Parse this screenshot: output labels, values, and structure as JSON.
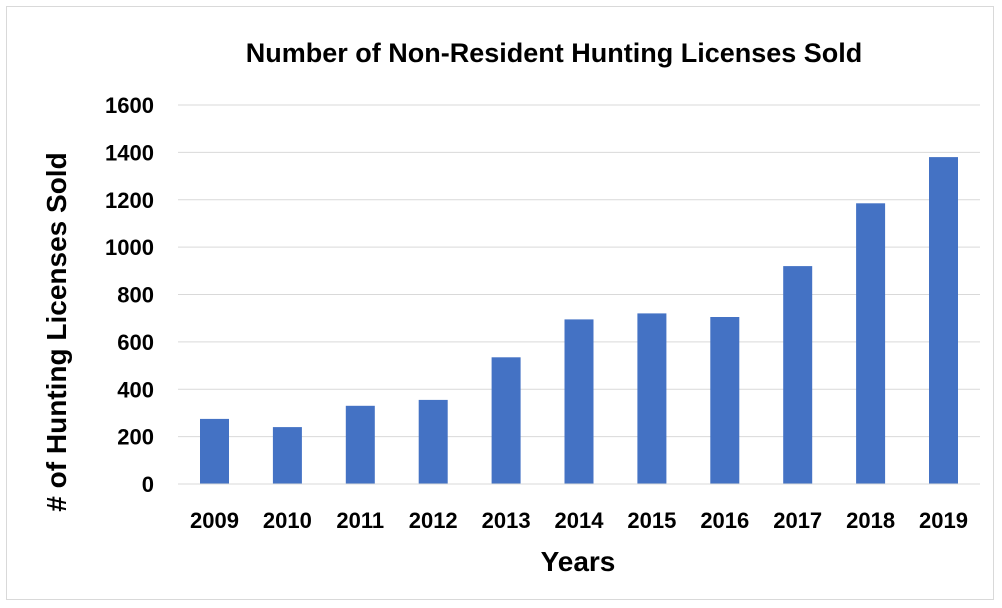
{
  "chart_data": {
    "type": "bar",
    "title": "Number of Non-Resident Hunting Licenses Sold",
    "xlabel": "Years",
    "ylabel": "# of Hunting Licenses Sold",
    "categories": [
      "2009",
      "2010",
      "2011",
      "2012",
      "2013",
      "2014",
      "2015",
      "2016",
      "2017",
      "2018",
      "2019"
    ],
    "values": [
      275,
      240,
      330,
      355,
      535,
      695,
      720,
      705,
      920,
      1185,
      1380
    ],
    "ylim": [
      0,
      1600
    ],
    "yticks": [
      0,
      200,
      400,
      600,
      800,
      1000,
      1200,
      1400,
      1600
    ],
    "ytick_labels": [
      "0",
      "200",
      "400",
      "600",
      "800",
      "1000",
      "1200",
      "1400",
      "1600"
    ],
    "grid": true,
    "legend": "none",
    "bar_color": "#4472C4"
  }
}
